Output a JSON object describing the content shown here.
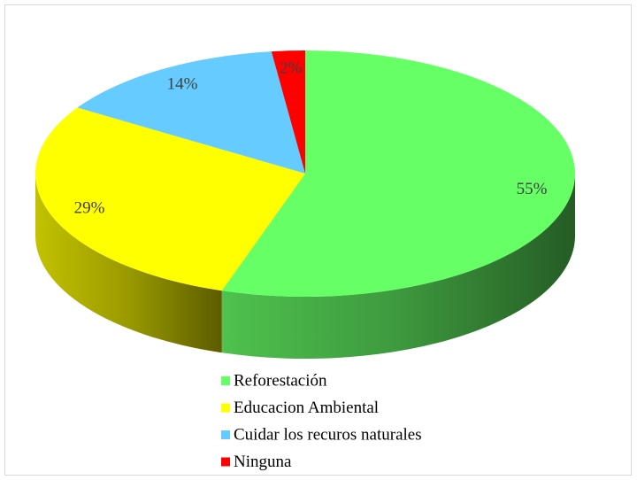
{
  "chart_data": {
    "type": "pie",
    "categories": [
      "Reforestación",
      "Educacion Ambiental",
      "Cuidar los recuros naturales",
      "Ninguna"
    ],
    "values": [
      55,
      29,
      14,
      2
    ],
    "value_labels": [
      "55%",
      "29%",
      "14%",
      "2%"
    ],
    "colors": [
      "#66ff66",
      "#ffff00",
      "#66ccff",
      "#ff0000"
    ],
    "legend": "bottom"
  }
}
